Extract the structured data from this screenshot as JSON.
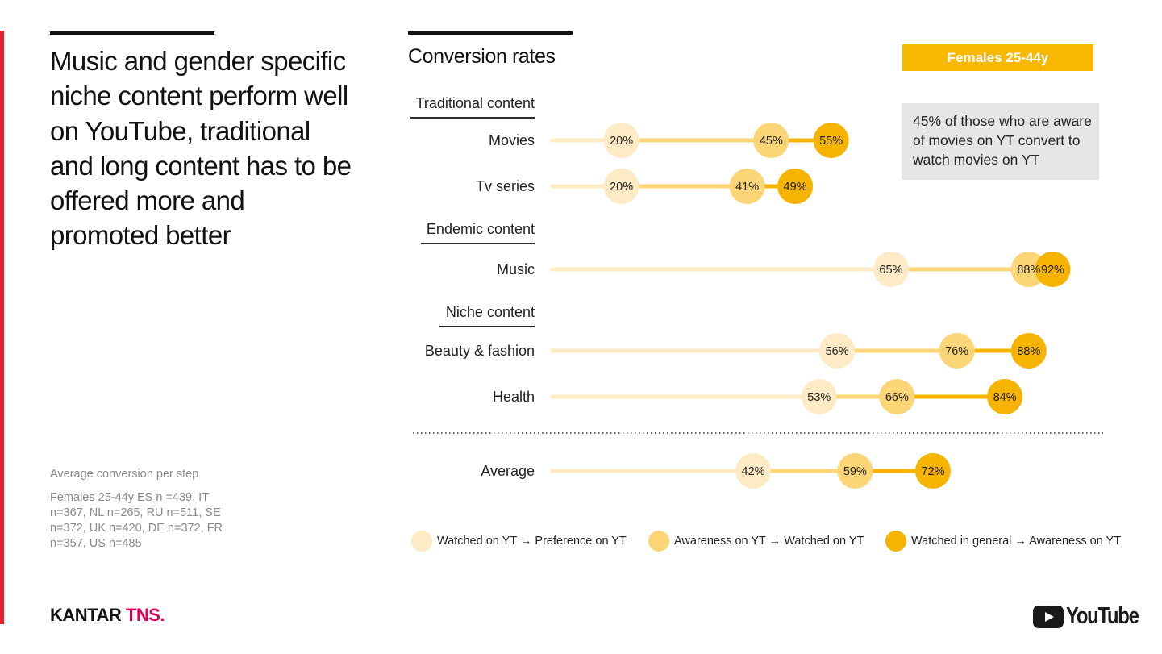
{
  "headline": "Music and gender specific niche content perform well on YouTube, traditional and long content has to be offered more and promoted better",
  "note": {
    "title": "Average conversion per step",
    "body": "Females 25-44y ES n =439, IT n=367, NL n=265, RU n=511, SE n=372, UK n=420, DE n=372, FR n=357, US n=485"
  },
  "chart_title": "Conversion rates",
  "badge": "Females 25-44y",
  "callout": "45% of those who are aware of movies on YT convert to watch movies on YT",
  "colors": {
    "preference": "#fdebc6",
    "watched": "#fbd576",
    "awareness": "#f6b400",
    "accent_red": "#e4202c",
    "badge": "#f9b800"
  },
  "chart_data": {
    "type": "dot-plot",
    "title": "Conversion rates",
    "xlim": [
      0,
      100
    ],
    "series": [
      {
        "name": "Watched on YT → Preference on YT",
        "color": "#fdebc6"
      },
      {
        "name": "Awareness on YT → Watched on YT",
        "color": "#fbd576"
      },
      {
        "name": "Watched in general → Awareness on YT",
        "color": "#f6b400"
      }
    ],
    "groups": [
      {
        "name": "Traditional content",
        "rows": [
          {
            "label": "Movies",
            "values": [
              20,
              45,
              55
            ]
          },
          {
            "label": "Tv series",
            "values": [
              20,
              41,
              49
            ]
          }
        ]
      },
      {
        "name": "Endemic content",
        "rows": [
          {
            "label": "Music",
            "values": [
              65,
              88,
              92
            ]
          }
        ]
      },
      {
        "name": "Niche content",
        "rows": [
          {
            "label": "Beauty & fashion",
            "values": [
              56,
              76,
              88
            ]
          },
          {
            "label": "Health",
            "values": [
              53,
              66,
              84
            ]
          }
        ]
      }
    ],
    "summary": {
      "label": "Average",
      "values": [
        42,
        59,
        72
      ]
    }
  },
  "legend": [
    "Watched on YT → Preference on YT",
    "Awareness on YT → Watched on YT",
    "Watched in general → Awareness on YT"
  ],
  "logos": {
    "kantar_part1": "KANTAR",
    "kantar_part2": "TNS.",
    "youtube": "YouTube"
  }
}
